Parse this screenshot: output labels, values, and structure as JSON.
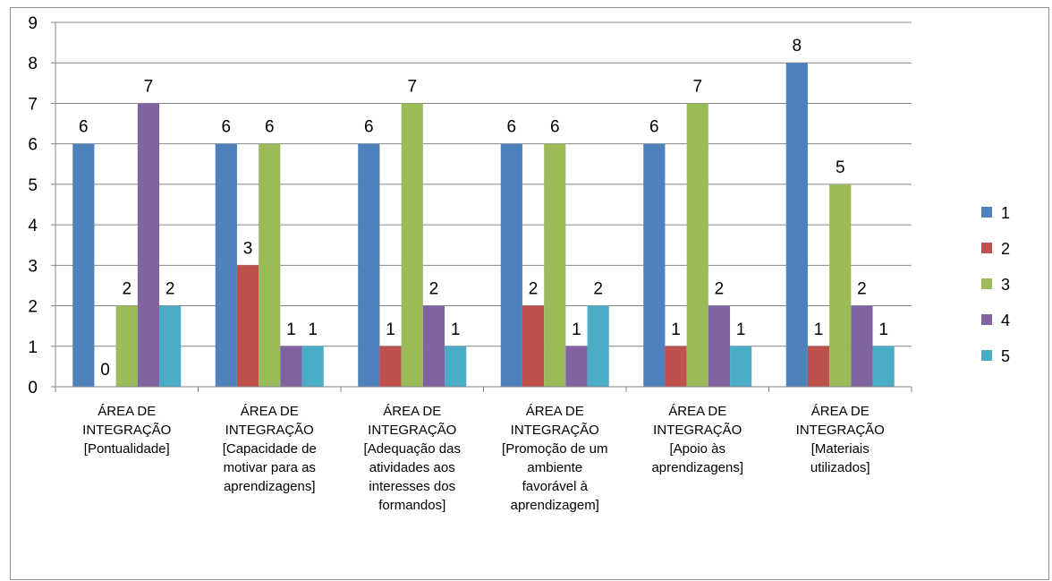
{
  "chart_data": {
    "type": "bar",
    "categories": [
      [
        "ÁREA DE",
        "INTEGRAÇÃO",
        "[Pontualidade]"
      ],
      [
        "ÁREA DE",
        "INTEGRAÇÃO",
        "[Capacidade de",
        "motivar para as",
        "aprendizagens]"
      ],
      [
        "ÁREA DE",
        "INTEGRAÇÃO",
        "[Adequação das",
        "atividades aos",
        "interesses dos",
        "formandos]"
      ],
      [
        "ÁREA DE",
        "INTEGRAÇÃO",
        "[Promoção de um",
        "ambiente",
        "favorável à",
        "aprendizagem]"
      ],
      [
        "ÁREA DE",
        "INTEGRAÇÃO",
        "[Apoio às",
        "aprendizagens]"
      ],
      [
        "ÁREA DE",
        "INTEGRAÇÃO",
        "[Materiais",
        "utilizados]"
      ]
    ],
    "series": [
      {
        "name": "1",
        "color": "#4f81bd",
        "values": [
          6,
          6,
          6,
          6,
          6,
          8
        ]
      },
      {
        "name": "2",
        "color": "#c0504d",
        "values": [
          0,
          3,
          1,
          2,
          1,
          1
        ]
      },
      {
        "name": "3",
        "color": "#9bbb59",
        "values": [
          2,
          6,
          7,
          6,
          7,
          5
        ]
      },
      {
        "name": "4",
        "color": "#8064a2",
        "values": [
          7,
          1,
          2,
          1,
          2,
          2
        ]
      },
      {
        "name": "5",
        "color": "#4bacc6",
        "values": [
          2,
          1,
          1,
          2,
          1,
          1
        ]
      }
    ],
    "ylim": [
      0,
      9
    ],
    "yticks": [
      0,
      1,
      2,
      3,
      4,
      5,
      6,
      7,
      8,
      9
    ],
    "grid": true,
    "legend_position": "right",
    "gridline_color": "#868686"
  }
}
